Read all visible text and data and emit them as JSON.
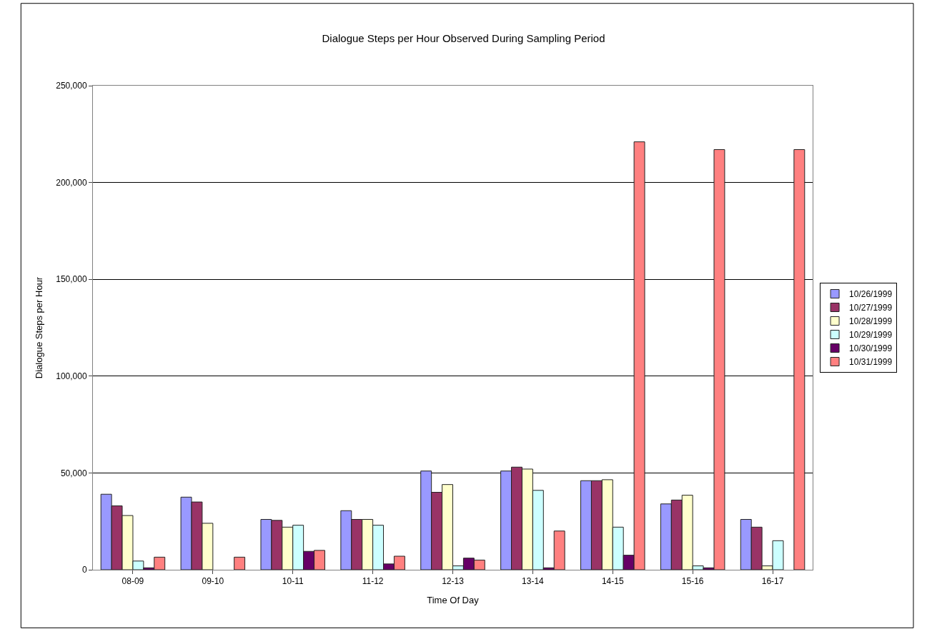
{
  "chart_data": {
    "type": "bar",
    "title": "Dialogue Steps per Hour Observed During Sampling Period",
    "xlabel": "Time Of Day",
    "ylabel": "Dialogue Steps per Hour",
    "categories": [
      "08-09",
      "09-10",
      "10-11",
      "11-12",
      "12-13",
      "13-14",
      "14-15",
      "15-16",
      "16-17"
    ],
    "series": [
      {
        "name": "10/26/1999",
        "color": "#9999ff",
        "values": [
          39000,
          37500,
          26000,
          30500,
          51000,
          51000,
          46000,
          34000,
          26000
        ]
      },
      {
        "name": "10/27/1999",
        "color": "#993366",
        "values": [
          33000,
          35000,
          25500,
          26000,
          40000,
          53000,
          46000,
          36000,
          22000
        ]
      },
      {
        "name": "10/28/1999",
        "color": "#ffffcc",
        "values": [
          28000,
          24000,
          22000,
          26000,
          44000,
          52000,
          46500,
          38500,
          2000
        ]
      },
      {
        "name": "10/29/1999",
        "color": "#ccffff",
        "values": [
          4500,
          null,
          23000,
          23000,
          2000,
          41000,
          22000,
          2000,
          15000
        ]
      },
      {
        "name": "10/30/1999",
        "color": "#660066",
        "values": [
          1000,
          null,
          9500,
          3000,
          6000,
          1000,
          7500,
          1000,
          null
        ]
      },
      {
        "name": "10/31/1999",
        "color": "#ff8080",
        "values": [
          6500,
          6500,
          10000,
          7000,
          5000,
          20000,
          221000,
          217000,
          217000
        ]
      }
    ],
    "ylim": [
      0,
      250000
    ],
    "yticks": [
      {
        "value": 0,
        "label": "0"
      },
      {
        "value": 50000,
        "label": "50,000"
      },
      {
        "value": 100000,
        "label": "100,000"
      },
      {
        "value": 150000,
        "label": "150,000"
      },
      {
        "value": 200000,
        "label": "200,000"
      },
      {
        "value": 250000,
        "label": "250,000"
      }
    ],
    "grid": "y",
    "legend": "right"
  }
}
